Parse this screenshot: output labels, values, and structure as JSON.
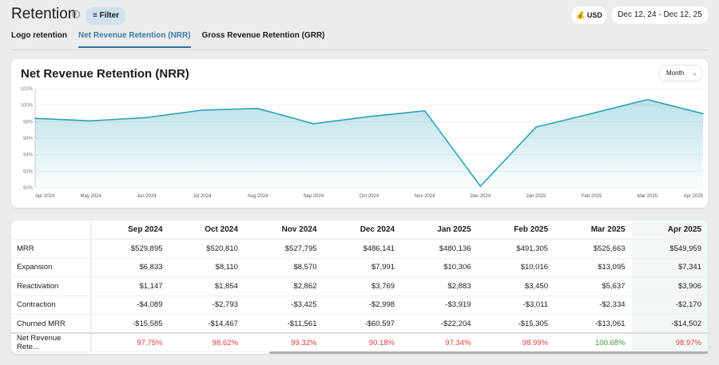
{
  "header": {
    "title": "Retention",
    "filter_label": "Filter",
    "currency": "USD",
    "date_range": "Dec 12, 24 - Dec 12, 25"
  },
  "tabs": [
    {
      "label": "Logo retention"
    },
    {
      "label": "Net Revenue Retention (NRR)",
      "active": true
    },
    {
      "label": "Gross Revenue Retention (GRR)"
    }
  ],
  "chart_card": {
    "title": "Net Revenue Retention (NRR)",
    "period": "Month"
  },
  "chart_data": {
    "type": "area",
    "x": [
      "Apr 2024",
      "May 2024",
      "Jun 2024",
      "Jul 2024",
      "Aug 2024",
      "Sep 2024",
      "Oct 2024",
      "Nov 2024",
      "Dec 2024",
      "Jan 2025",
      "Feb 2025",
      "Mar 2025",
      "Apr 2025"
    ],
    "values": [
      98.4,
      98.1,
      98.5,
      99.4,
      99.6,
      97.75,
      98.62,
      99.32,
      90.18,
      97.34,
      98.99,
      100.68,
      98.97
    ],
    "ylim": [
      90,
      102
    ],
    "yticks": [
      "90%",
      "92%",
      "94%",
      "96%",
      "98%",
      "100%",
      "102%"
    ],
    "grid": true,
    "color": "#2aa3b8"
  },
  "table": {
    "columns": [
      "Sep 2024",
      "Oct 2024",
      "Nov 2024",
      "Dec 2024",
      "Jan 2025",
      "Feb 2025",
      "Mar 2025",
      "Apr 2025"
    ],
    "rows": [
      {
        "label": "MRR",
        "values": [
          "$529,895",
          "$520,810",
          "$527,795",
          "$486,141",
          "$480,136",
          "$491,305",
          "$525,663",
          "$549,959"
        ]
      },
      {
        "label": "Expansion",
        "values": [
          "$6,833",
          "$8,110",
          "$8,570",
          "$7,991",
          "$10,306",
          "$10,016",
          "$13,095",
          "$7,341"
        ]
      },
      {
        "label": "Reactivation",
        "values": [
          "$1,147",
          "$1,854",
          "$2,862",
          "$3,769",
          "$2,883",
          "$3,450",
          "$5,637",
          "$3,906"
        ]
      },
      {
        "label": "Contraction",
        "values": [
          "-$4,089",
          "-$2,793",
          "-$3,425",
          "-$2,998",
          "-$3,919",
          "-$3,011",
          "-$2,334",
          "-$2,170"
        ]
      },
      {
        "label": "Churned MRR",
        "values": [
          "-$15,585",
          "-$14,467",
          "-$11,561",
          "-$60,597",
          "-$22,204",
          "-$15,305",
          "-$13,061",
          "-$14,502"
        ]
      }
    ],
    "nrr_row": {
      "label": "Net Revenue Rete...",
      "values": [
        "97.75%",
        "98.62%",
        "99.32%",
        "90.18%",
        "97.34%",
        "98.99%",
        "100.68%",
        "98.97%"
      ],
      "status": [
        "red",
        "red",
        "red",
        "red",
        "red",
        "red",
        "green",
        "red"
      ]
    },
    "colors": {
      "below": "#e03a3a",
      "above": "#3f9a32"
    }
  }
}
